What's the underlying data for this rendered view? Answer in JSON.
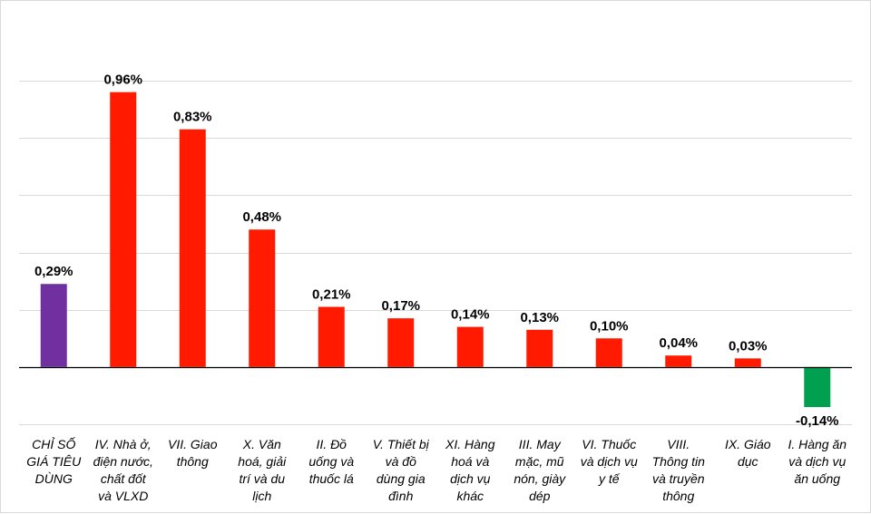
{
  "chart_data": {
    "type": "bar",
    "categories": [
      [
        "CHỈ SỐ",
        "GIÁ TIÊU",
        "DÙNG"
      ],
      [
        "IV. Nhà ở,",
        "điện nước,",
        "chất đốt",
        "và VLXD"
      ],
      [
        "VII. Giao",
        "thông"
      ],
      [
        "X. Văn",
        "hoá, giải",
        "trí và du",
        "lịch"
      ],
      [
        "II. Đồ",
        "uống và",
        "thuốc lá"
      ],
      [
        "V. Thiết bị",
        "và đồ",
        "dùng gia",
        "đình"
      ],
      [
        "XI. Hàng",
        "hoá và",
        "dịch vụ",
        "khác"
      ],
      [
        "III. May",
        "mặc, mũ",
        "nón, giày",
        "dép"
      ],
      [
        "VI. Thuốc",
        "và dịch vụ",
        "y tế"
      ],
      [
        "VIII.",
        "Thông tin",
        "và truyền",
        "thông"
      ],
      [
        "IX. Giáo",
        "dục"
      ],
      [
        "I. Hàng ăn",
        "và dịch vụ",
        "ăn uống"
      ]
    ],
    "values": [
      0.29,
      0.96,
      0.83,
      0.48,
      0.21,
      0.17,
      0.14,
      0.13,
      0.1,
      0.04,
      0.03,
      -0.14
    ],
    "labels": [
      "0,29%",
      "0,96%",
      "0,83%",
      "0,48%",
      "0,21%",
      "0,17%",
      "0,14%",
      "0,13%",
      "0,10%",
      "0,04%",
      "0,03%",
      "-0,14%"
    ],
    "colors": [
      "#7030a0",
      "#ff1a00",
      "#ff1a00",
      "#ff1a00",
      "#ff1a00",
      "#ff1a00",
      "#ff1a00",
      "#ff1a00",
      "#ff1a00",
      "#ff1a00",
      "#ff1a00",
      "#00a050"
    ],
    "ylim": [
      -0.2,
      1.0
    ],
    "gridline_step": 0.2,
    "grid": true,
    "legend": "none",
    "title": "",
    "xlabel": "",
    "ylabel": ""
  }
}
